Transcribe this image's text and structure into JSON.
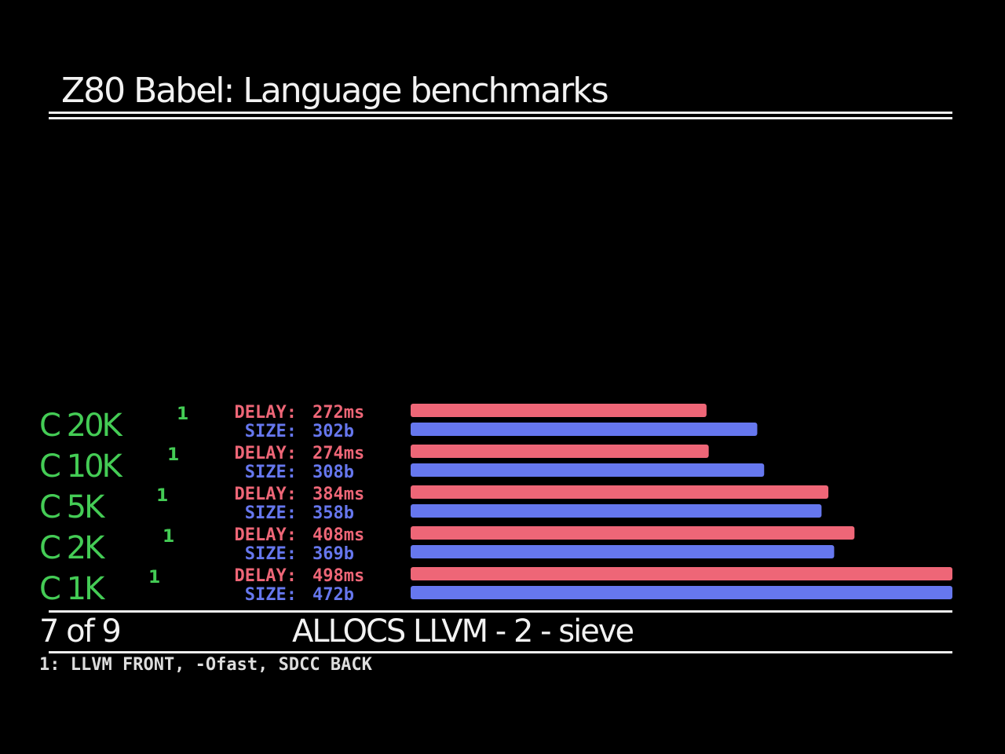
{
  "title": "Z80 Babel: Language benchmarks",
  "footer": {
    "page": "7 of 9",
    "caption": "ALLOCS LLVM - 2 - sieve",
    "footnote": "1: LLVM FRONT, -Ofast, SDCC BACK"
  },
  "colors": {
    "background": "#000000",
    "label": "#44cc55",
    "delay": "#ee6677",
    "size": "#6677ee",
    "text": "#f2f2f2"
  },
  "chart_data": {
    "type": "bar",
    "orientation": "horizontal",
    "categories": [
      "C 20K",
      "C 10K",
      "C 5K",
      "C 2K",
      "C 1K"
    ],
    "category_superscript": "1",
    "series": [
      {
        "name": "DELAY",
        "unit": "ms",
        "label_prefix": "DELAY:",
        "display": [
          "272ms",
          "274ms",
          "384ms",
          "408ms",
          "498ms"
        ],
        "values": [
          272,
          274,
          384,
          408,
          498
        ],
        "color": "#ee6677"
      },
      {
        "name": "SIZE",
        "unit": "b",
        "label_prefix": "SIZE:",
        "display": [
          "302b",
          "308b",
          "358b",
          "369b",
          "472b"
        ],
        "values": [
          302,
          308,
          358,
          369,
          472
        ],
        "color": "#6677ee"
      }
    ],
    "grid": false,
    "legend": "none"
  }
}
